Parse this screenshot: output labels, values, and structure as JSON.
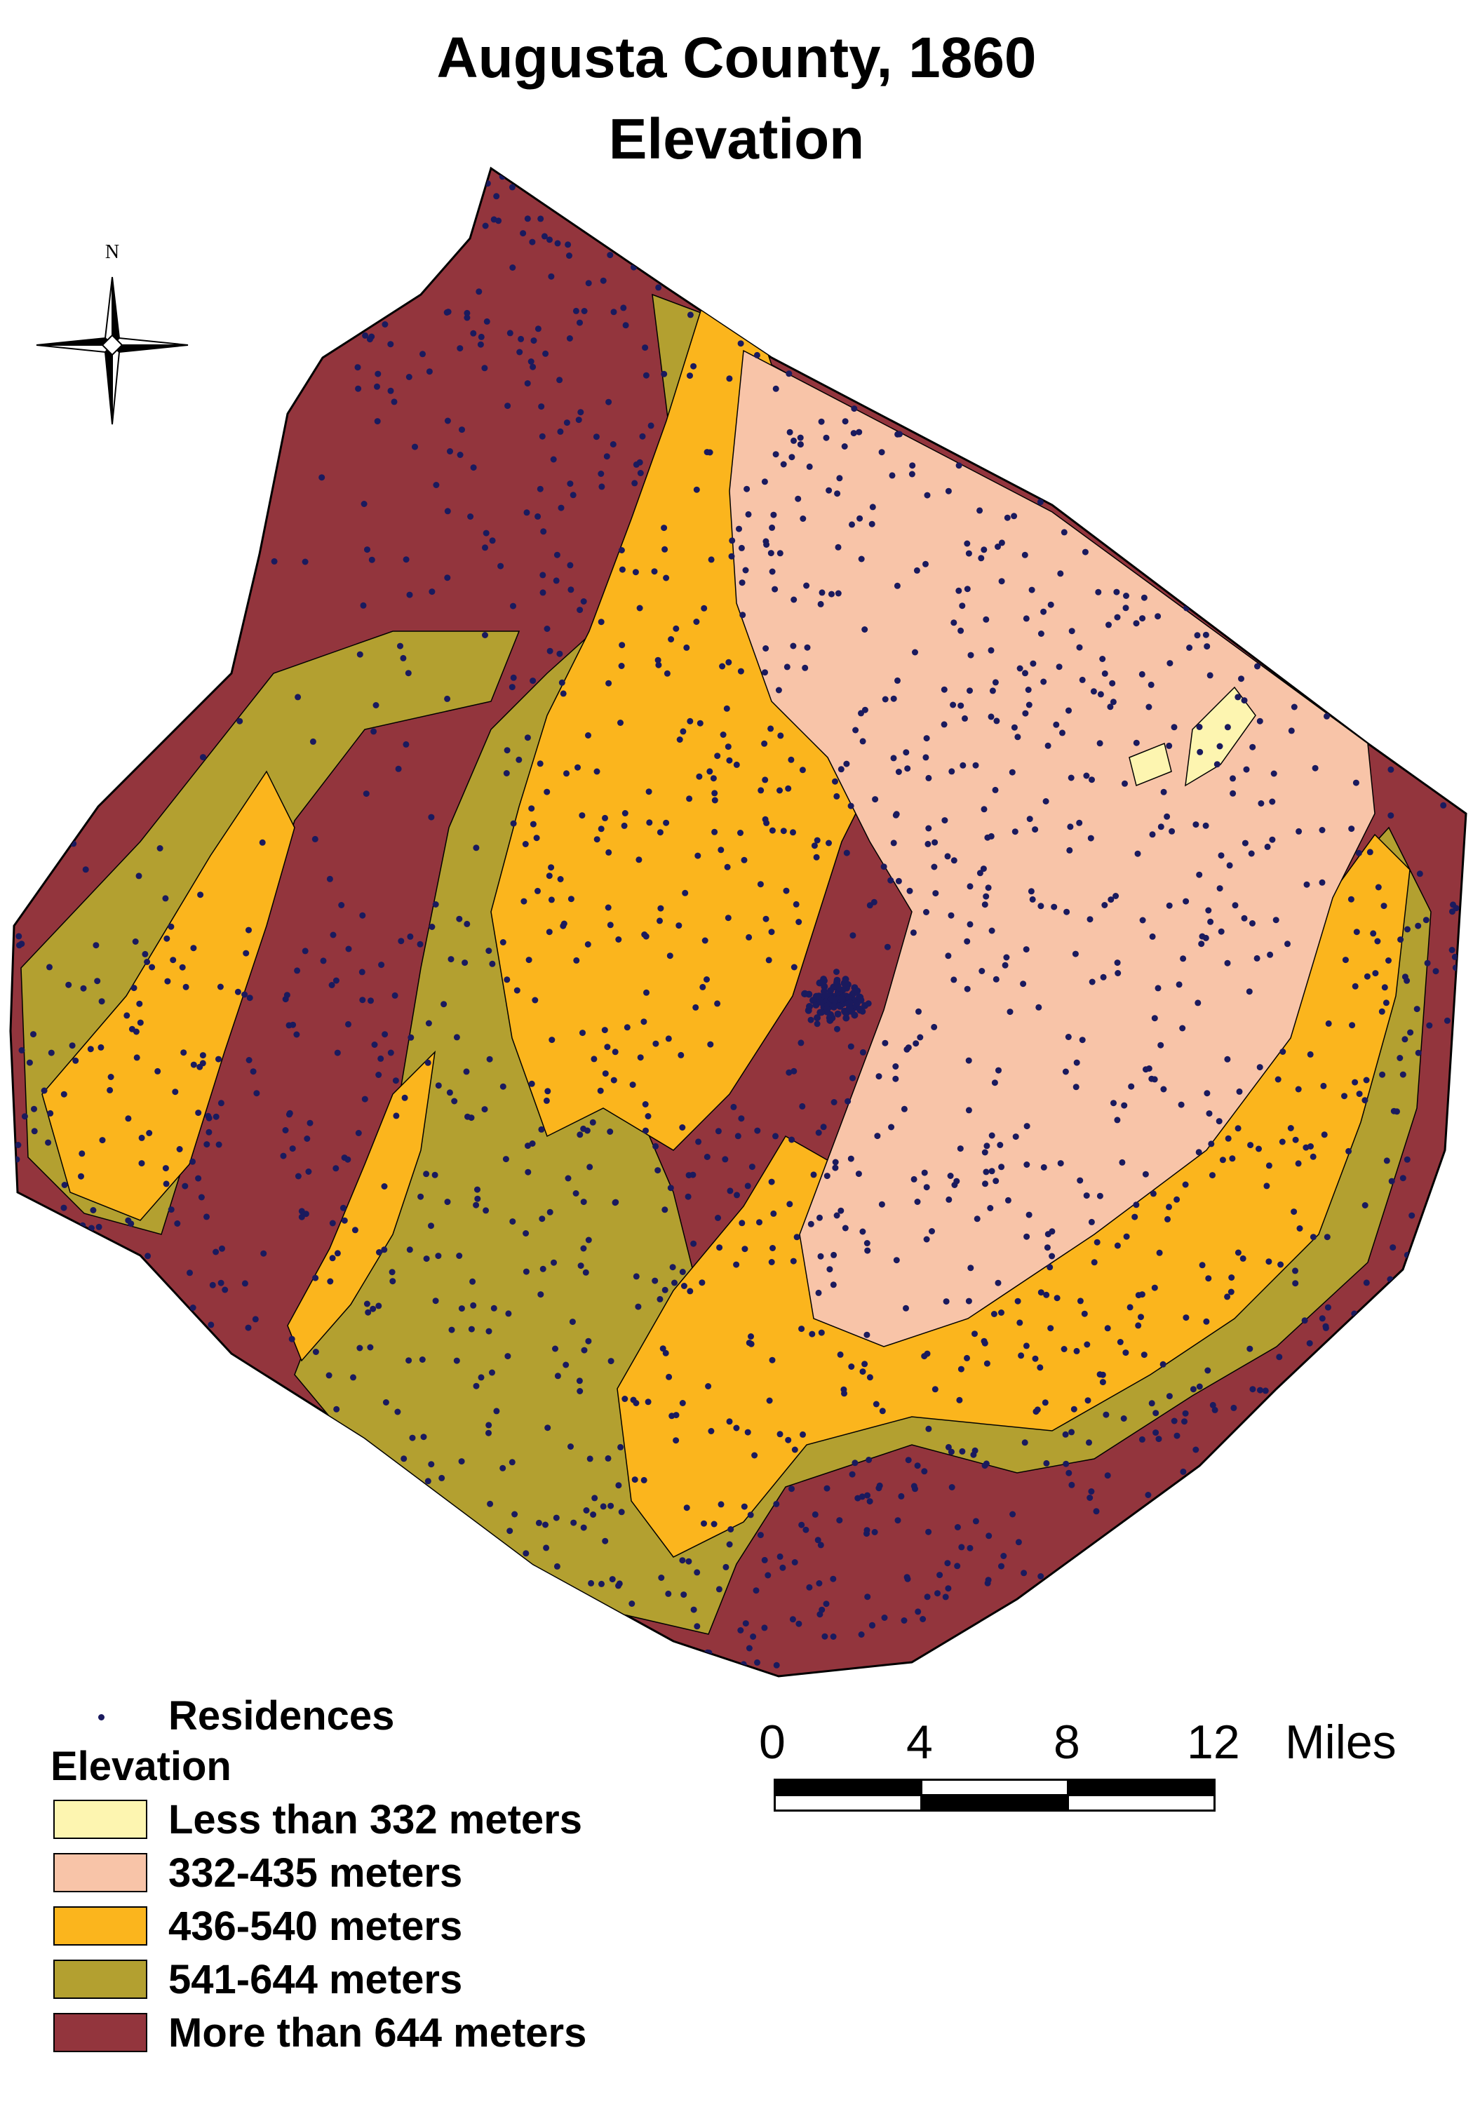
{
  "title": {
    "line1": "Augusta County, 1860",
    "line2": "Elevation"
  },
  "north_arrow": {
    "label": "N",
    "icon": "compass-rose-icon"
  },
  "legend": {
    "residences_label": "Residences",
    "residences_color": "#1a1a5e",
    "elevation_heading": "Elevation",
    "classes": [
      {
        "label": "Less than 332 meters",
        "color": "#fdf5b0"
      },
      {
        "label": "332-435 meters",
        "color": "#f8c4a8"
      },
      {
        "label": "436-540 meters",
        "color": "#fbb51d"
      },
      {
        "label": "541-644 meters",
        "color": "#b3a030"
      },
      {
        "label": "More than 644 meters",
        "color": "#93353d"
      }
    ]
  },
  "scale_bar": {
    "ticks": [
      "0",
      "4",
      "8",
      "12"
    ],
    "unit": "Miles"
  }
}
